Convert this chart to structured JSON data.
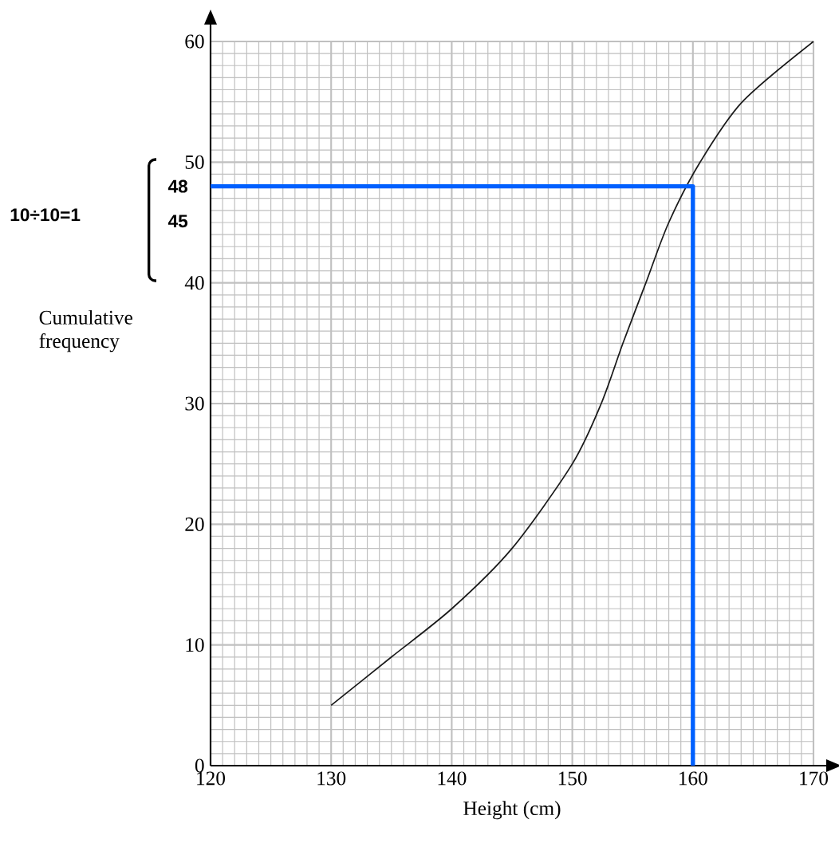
{
  "chart_data": {
    "type": "line",
    "xlabel": "Height (cm)",
    "ylabel": "Cumulative frequency",
    "xlim": [
      120,
      170
    ],
    "ylim": [
      0,
      60
    ],
    "xticks": [
      120,
      130,
      140,
      150,
      160,
      170
    ],
    "yticks": [
      0,
      10,
      20,
      30,
      40,
      50,
      60
    ],
    "grid": true,
    "marker": "none",
    "line_style": "solid",
    "series": [
      {
        "color": "#1a1a1a",
        "x": [
          130,
          135,
          140,
          145,
          150,
          152.4,
          154.2,
          156.1,
          158,
          160.6,
          164.1,
          170
        ],
        "values": [
          5,
          9,
          13,
          18,
          25,
          30,
          35,
          40,
          45,
          50,
          55,
          60
        ]
      },
      {
        "color": "#0060ff",
        "x": [
          120,
          160,
          160
        ],
        "values": [
          48,
          48,
          0
        ]
      }
    ],
    "annotations": [
      {
        "text": "48",
        "x": 120,
        "y": 48
      },
      "45",
      "10÷10=1"
    ]
  }
}
